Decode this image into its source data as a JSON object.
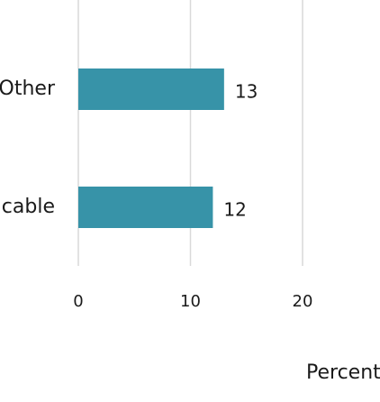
{
  "chart_data": {
    "type": "bar",
    "orientation": "horizontal",
    "categories": [
      "Other",
      "cable"
    ],
    "values": [
      13,
      12
    ],
    "data_labels": [
      "13",
      "12"
    ],
    "xlabel": "Percent",
    "x_ticks": [
      "0",
      "10",
      "20"
    ],
    "x_tick_values": [
      0,
      10,
      20
    ],
    "xlim": [
      0,
      20
    ],
    "grid": true,
    "bar_color": "#3793a8"
  }
}
